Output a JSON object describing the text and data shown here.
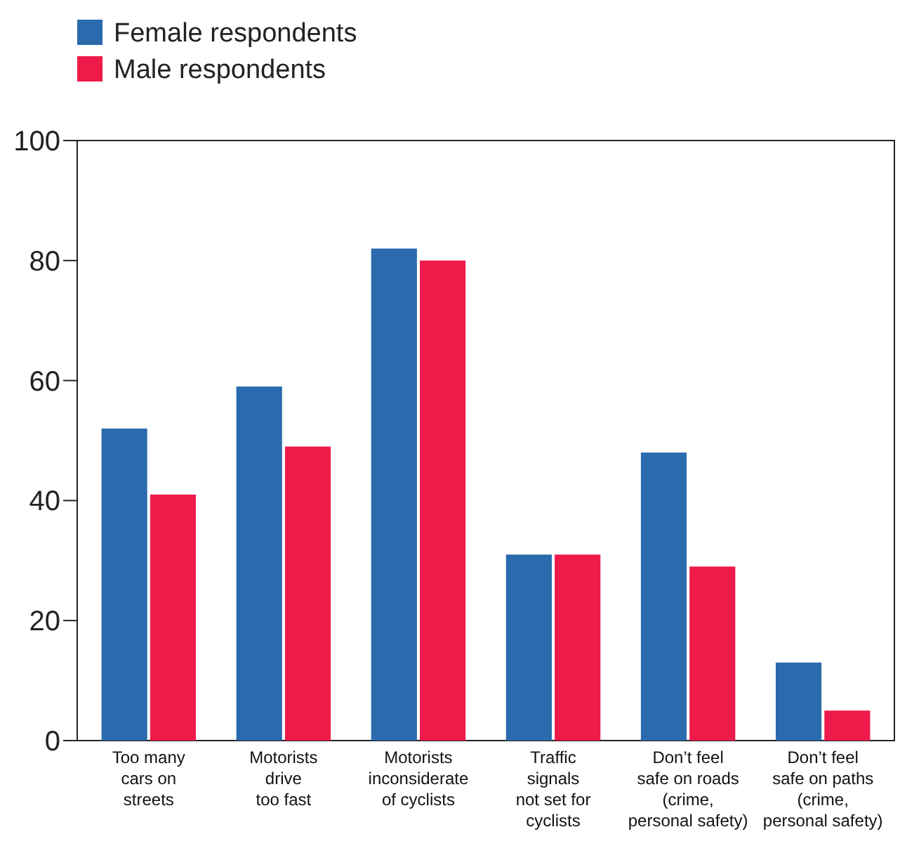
{
  "chart_data": {
    "type": "bar",
    "categories": [
      "Too many\ncars on\nstreets",
      "Motorists\ndrive\ntoo fast",
      "Motorists\ninconsiderate\nof cyclists",
      "Traffic\nsignals\nnot set for\ncyclists",
      "Don’t feel\nsafe on roads\n(crime,\npersonal safety)",
      "Don’t feel\nsafe on paths\n(crime,\npersonal safety)"
    ],
    "series": [
      {
        "name": "Female respondents",
        "color": "#2a6aad",
        "values": [
          52,
          59,
          82,
          31,
          48,
          13
        ]
      },
      {
        "name": "Male respondents",
        "color": "#ee1a4a",
        "values": [
          41,
          49,
          80,
          31,
          29,
          5
        ]
      }
    ],
    "ylim": [
      0,
      100
    ],
    "yticks": [
      0,
      20,
      40,
      60,
      80,
      100
    ],
    "grid": false,
    "legend": "top left"
  }
}
